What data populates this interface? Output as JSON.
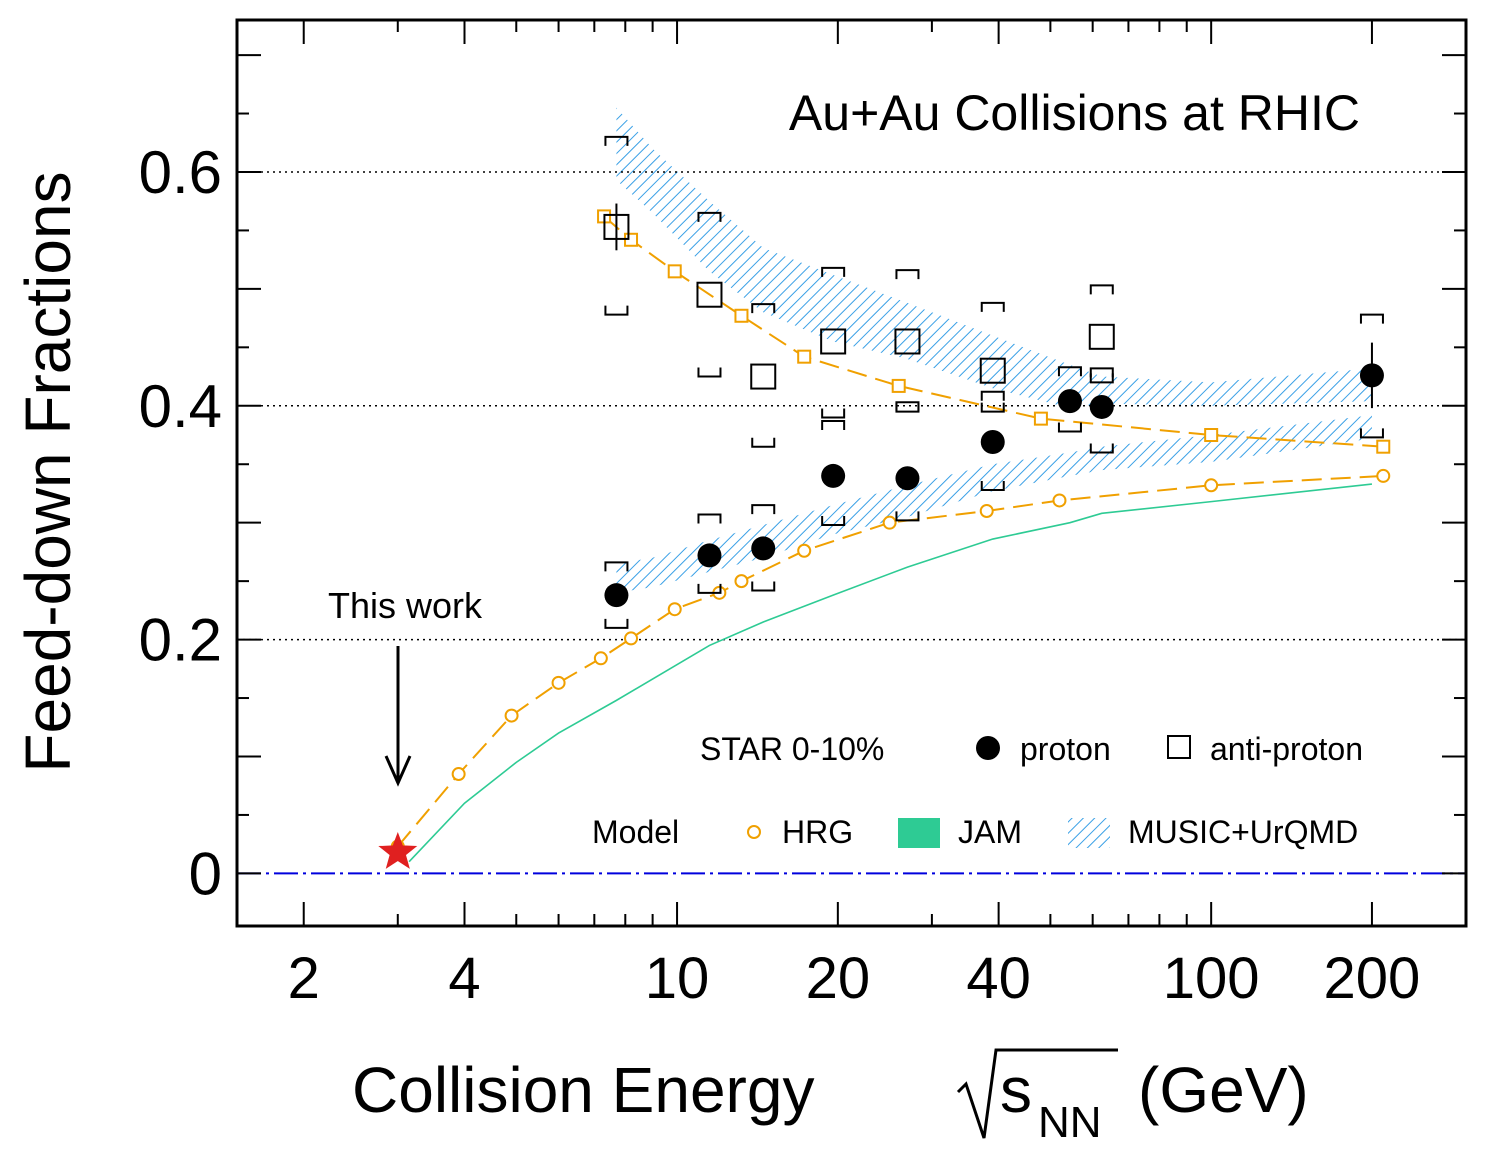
{
  "chart_data": {
    "type": "scatter",
    "title": "Au+Au Collisions at RHIC",
    "xlabel": {
      "main": "Collision Energy",
      "sym": "s",
      "sub": "NN",
      "unit": "(GeV)"
    },
    "ylabel": "Feed-down Fractions",
    "x_scale": "log",
    "xlim": [
      1.5,
      300
    ],
    "ylim": [
      -0.045,
      0.73
    ],
    "x_ticks": [
      2,
      4,
      10,
      20,
      40,
      100,
      200
    ],
    "x_tick_labels": [
      "2",
      "4",
      "10",
      "20",
      "40",
      "100",
      "200"
    ],
    "y_ticks": [
      0,
      0.2,
      0.4,
      0.6
    ],
    "y_tick_labels": [
      "0",
      "0.2",
      "0.4",
      "0.6"
    ],
    "gridlines_y": [
      0.2,
      0.4,
      0.6
    ],
    "zero_line": {
      "y": 0,
      "color": "#0000dd",
      "style": "dash-dot"
    },
    "series": [
      {
        "name": "proton",
        "marker": "filled-circle",
        "color": "#000000",
        "x": [
          7.7,
          11.5,
          14.5,
          19.6,
          27,
          39,
          54.4,
          62.4,
          200
        ],
        "y": [
          0.238,
          0.272,
          0.278,
          0.34,
          0.338,
          0.369,
          0.404,
          0.399,
          0.426
        ],
        "sys_low": [
          0.21,
          0.24,
          0.242,
          0.298,
          0.302,
          0.328,
          0.378,
          0.36,
          0.373
        ],
        "sys_high": [
          0.266,
          0.307,
          0.315,
          0.387,
          0.403,
          0.412,
          0.433,
          0.432,
          0.478
        ],
        "stat_err": [
          0.002,
          0.002,
          0.002,
          0.002,
          0.002,
          0.002,
          0.002,
          0.002,
          0.028
        ]
      },
      {
        "name": "anti-proton",
        "marker": "open-square",
        "color": "#000000",
        "x": [
          7.7,
          11.5,
          14.5,
          19.6,
          27,
          39,
          62.4
        ],
        "y": [
          0.553,
          0.495,
          0.425,
          0.455,
          0.455,
          0.43,
          0.459
        ],
        "sys_low": [
          0.478,
          0.425,
          0.365,
          0.39,
          0.395,
          0.395,
          0.42
        ],
        "sys_high": [
          0.63,
          0.565,
          0.487,
          0.518,
          0.516,
          0.488,
          0.503
        ],
        "stat_err": [
          0.02,
          0.002,
          0.002,
          0.002,
          0.002,
          0.002,
          0.002
        ]
      },
      {
        "name": "HRG",
        "marker": "open-circle",
        "color": "#f0a000",
        "line": "dashed",
        "x": [
          3,
          3.9,
          4.9,
          6,
          7.2,
          8.2,
          9.9,
          12,
          13.2,
          17.3,
          25,
          38,
          52,
          100,
          210
        ],
        "y": [
          0.023,
          0.085,
          0.135,
          0.163,
          0.184,
          0.201,
          0.226,
          0.24,
          0.25,
          0.276,
          0.3,
          0.31,
          0.319,
          0.332,
          0.34
        ]
      },
      {
        "name": "HRG anti-proton",
        "marker": "open-square",
        "color": "#f0a000",
        "line": "dashed",
        "x": [
          7.3,
          8.2,
          9.9,
          13.2,
          17.3,
          26,
          48,
          100,
          210
        ],
        "y": [
          0.562,
          0.542,
          0.515,
          0.477,
          0.442,
          0.417,
          0.389,
          0.375,
          0.365
        ]
      },
      {
        "name": "JAM",
        "color": "#2ecb94",
        "line": "solid",
        "x": [
          3.15,
          4,
          5,
          6,
          7.7,
          11.5,
          14.5,
          19.6,
          27,
          39,
          54.4,
          62.4,
          100,
          200
        ],
        "y": [
          0.01,
          0.06,
          0.095,
          0.12,
          0.148,
          0.195,
          0.215,
          0.238,
          0.262,
          0.286,
          0.3,
          0.308,
          0.318,
          0.333
        ]
      },
      {
        "name": "MUSIC+UrQMD",
        "color": "#3aa0e6",
        "fill": "hatched",
        "bands": [
          {
            "x": [
              7.7,
              9,
              11.5,
              14.5,
              19.6,
              27,
              39,
              54.4,
              62.4,
              100,
              200
            ],
            "upper": [
              0.655,
              0.62,
              0.575,
              0.535,
              0.512,
              0.488,
              0.46,
              0.435,
              0.425,
              0.42,
              0.432
            ],
            "lower": [
              0.593,
              0.565,
              0.515,
              0.48,
              0.455,
              0.44,
              0.415,
              0.398,
              0.402,
              0.4,
              0.404
            ]
          },
          {
            "x": [
              7.7,
              9,
              11.5,
              14.5,
              19.6,
              27,
              39,
              54.4,
              62.4,
              100,
              200
            ],
            "upper": [
              0.265,
              0.27,
              0.285,
              0.298,
              0.315,
              0.332,
              0.35,
              0.36,
              0.365,
              0.375,
              0.392
            ],
            "lower": [
              0.24,
              0.245,
              0.258,
              0.27,
              0.29,
              0.305,
              0.327,
              0.34,
              0.345,
              0.352,
              0.372
            ]
          }
        ]
      }
    ],
    "this_work": {
      "x": 3,
      "y": 0.018,
      "marker": "star",
      "color": "#e02020",
      "label": "This work"
    },
    "legend": {
      "placement": "bottom-right",
      "star_label": "STAR 0-10%",
      "model_label": "Model",
      "entries": [
        "proton",
        "anti-proton",
        "HRG",
        "JAM",
        "MUSIC+UrQMD"
      ]
    },
    "grid": "horizontal dotted at 0.2, 0.4, 0.6"
  }
}
